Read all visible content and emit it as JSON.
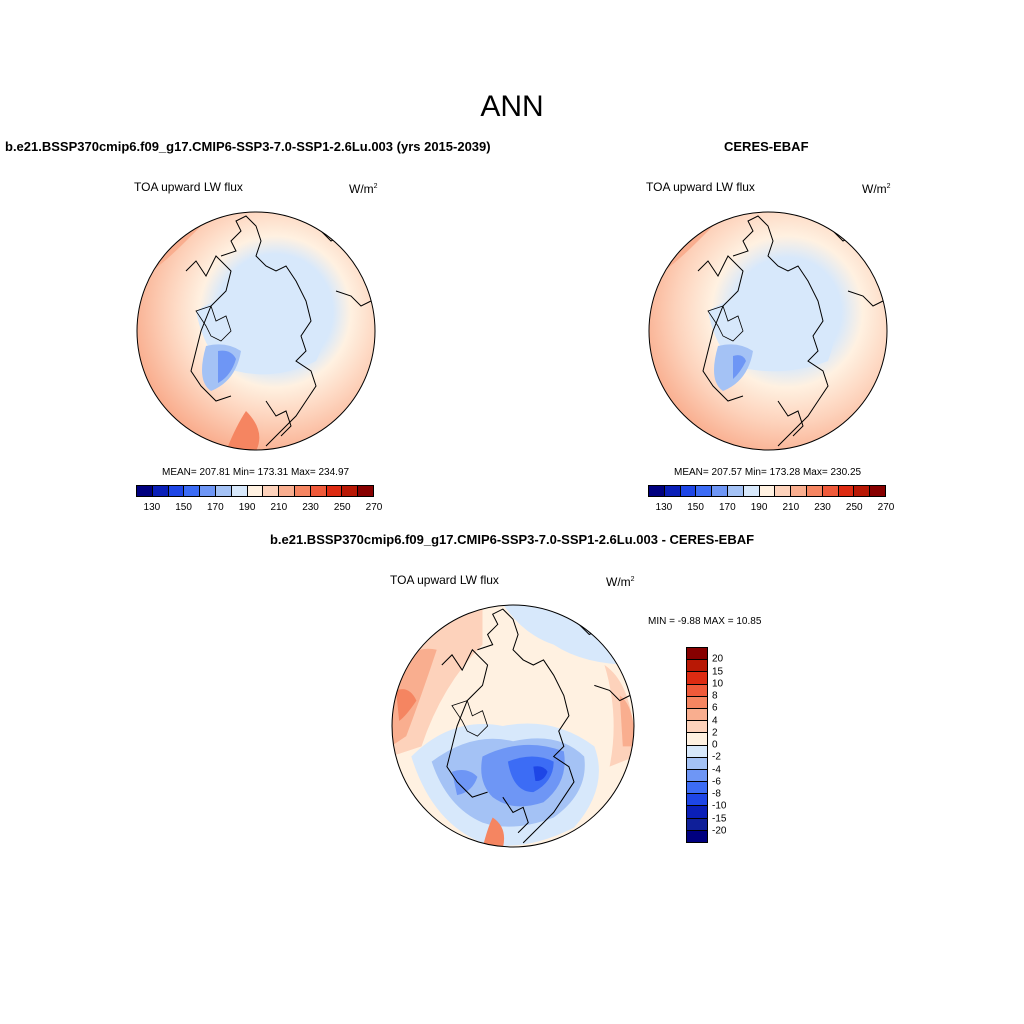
{
  "title": "ANN",
  "panels": {
    "model": {
      "title": "b.e21.BSSP370cmip6.f09_g17.CMIP6-SSP3-7.0-SSP1-2.6Lu.003 (yrs 2015-2039)",
      "variable": "TOA upward LW flux",
      "unit": "W/m",
      "unit_exp": "2",
      "stats": "MEAN= 207.81  Min= 173.31  Max= 234.97"
    },
    "obs": {
      "title": "CERES-EBAF",
      "variable": "TOA upward LW flux",
      "unit": "W/m",
      "unit_exp": "2",
      "stats": "MEAN= 207.57  Min= 173.28  Max= 230.25"
    },
    "diff": {
      "title": "b.e21.BSSP370cmip6.f09_g17.CMIP6-SSP3-7.0-SSP1-2.6Lu.003 - CERES-EBAF",
      "variable": "TOA upward LW flux",
      "unit": "W/m",
      "unit_exp": "2",
      "minmax": "MIN =  -9.88 MAX =  10.85"
    }
  },
  "colorbar_abs": {
    "labels": [
      "130",
      "150",
      "170",
      "190",
      "210",
      "230",
      "250",
      "270"
    ],
    "colors": [
      "#00007f",
      "#0a1fb8",
      "#1e46e6",
      "#3c6cf5",
      "#6e96f5",
      "#a4c2f5",
      "#d7e8fb",
      "#fff1e1",
      "#fdd2bb",
      "#f9ae8f",
      "#f58561",
      "#ef5a3a",
      "#dd2b12",
      "#b81805",
      "#870000"
    ]
  },
  "colorbar_diff": {
    "labels": [
      "20",
      "15",
      "10",
      "8",
      "6",
      "4",
      "2",
      "0",
      "-2",
      "-4",
      "-6",
      "-8",
      "-10",
      "-15",
      "-20"
    ],
    "colors": [
      "#870000",
      "#b81805",
      "#dd2b12",
      "#ef5a3a",
      "#f58561",
      "#f9ae8f",
      "#fdd2bb",
      "#fff1e1",
      "#d7e8fb",
      "#a4c2f5",
      "#6e96f5",
      "#3c6cf5",
      "#1e46e6",
      "#0a1fb8",
      "#0f1f99",
      "#00007f"
    ]
  }
}
